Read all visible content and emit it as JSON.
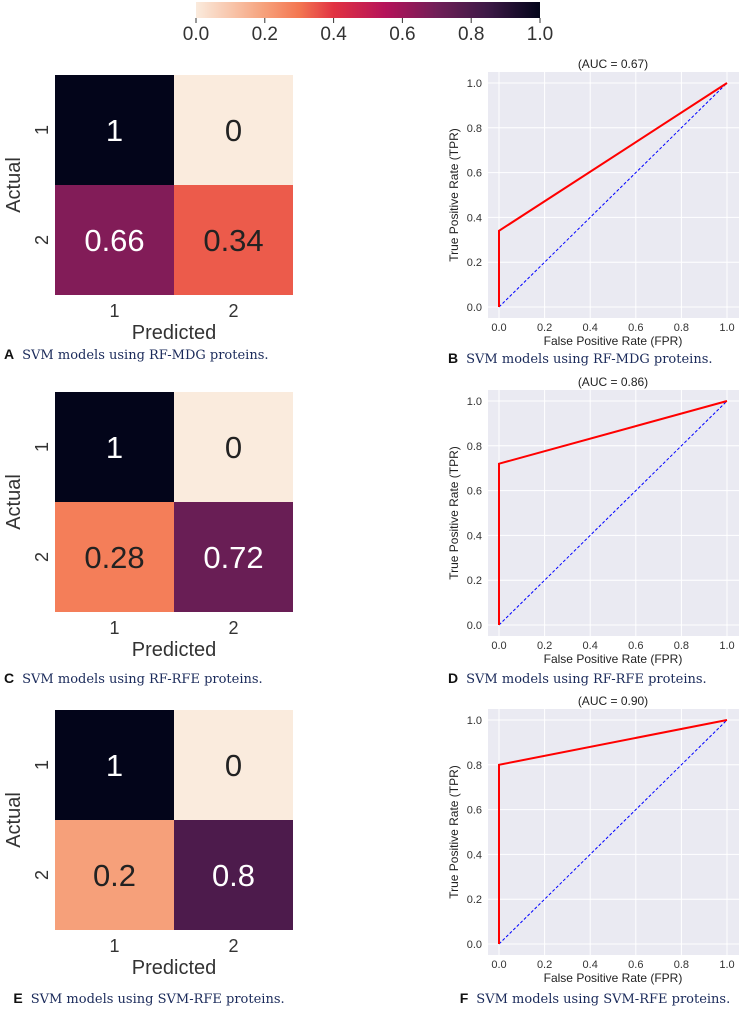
{
  "chart_data": [
    {
      "type": "heatmap",
      "panel": "A",
      "row_labels": [
        "1",
        "2"
      ],
      "col_labels": [
        "1",
        "2"
      ],
      "xlabel": "Predicted",
      "ylabel": "Actual",
      "values": [
        [
          1,
          0
        ],
        [
          0.66,
          0.34
        ]
      ],
      "value_labels": [
        [
          "1",
          "0"
        ],
        [
          "0.66",
          "0.34"
        ]
      ],
      "caption": "SVM models using RF-MDG proteins."
    },
    {
      "type": "line",
      "panel": "B",
      "title": "(AUC = 0.67)",
      "xlabel": "False Positive Rate (FPR)",
      "ylabel": "True Positive Rate (TPR)",
      "xlim": [
        0,
        1
      ],
      "ylim": [
        0,
        1
      ],
      "xticks": [
        "0.0",
        "0.2",
        "0.4",
        "0.6",
        "0.8",
        "1.0"
      ],
      "yticks": [
        "0.0",
        "0.2",
        "0.4",
        "0.6",
        "0.8",
        "1.0"
      ],
      "series": [
        {
          "name": "ROC",
          "color": "#ff0000",
          "x": [
            0,
            0,
            1
          ],
          "y": [
            0,
            0.34,
            1
          ]
        },
        {
          "name": "chance",
          "color": "#0000ff",
          "dashed": true,
          "x": [
            0,
            1
          ],
          "y": [
            0,
            1
          ]
        }
      ],
      "caption": "SVM models using RF-MDG proteins."
    },
    {
      "type": "heatmap",
      "panel": "C",
      "row_labels": [
        "1",
        "2"
      ],
      "col_labels": [
        "1",
        "2"
      ],
      "xlabel": "Predicted",
      "ylabel": "Actual",
      "values": [
        [
          1,
          0
        ],
        [
          0.28,
          0.72
        ]
      ],
      "value_labels": [
        [
          "1",
          "0"
        ],
        [
          "0.28",
          "0.72"
        ]
      ],
      "caption": "SVM models using RF-RFE proteins."
    },
    {
      "type": "line",
      "panel": "D",
      "title": "(AUC = 0.86)",
      "xlabel": "False Positive Rate (FPR)",
      "ylabel": "True Positive Rate (TPR)",
      "xlim": [
        0,
        1
      ],
      "ylim": [
        0,
        1
      ],
      "xticks": [
        "0.0",
        "0.2",
        "0.4",
        "0.6",
        "0.8",
        "1.0"
      ],
      "yticks": [
        "0.0",
        "0.2",
        "0.4",
        "0.6",
        "0.8",
        "1.0"
      ],
      "series": [
        {
          "name": "ROC",
          "color": "#ff0000",
          "x": [
            0,
            0,
            1
          ],
          "y": [
            0,
            0.72,
            1
          ]
        },
        {
          "name": "chance",
          "color": "#0000ff",
          "dashed": true,
          "x": [
            0,
            1
          ],
          "y": [
            0,
            1
          ]
        }
      ],
      "caption": "SVM models using RF-RFE proteins."
    },
    {
      "type": "heatmap",
      "panel": "E",
      "row_labels": [
        "1",
        "2"
      ],
      "col_labels": [
        "1",
        "2"
      ],
      "xlabel": "Predicted",
      "ylabel": "Actual",
      "values": [
        [
          1,
          0
        ],
        [
          0.2,
          0.8
        ]
      ],
      "value_labels": [
        [
          "1",
          "0"
        ],
        [
          "0.2",
          "0.8"
        ]
      ],
      "caption": "SVM models using SVM-RFE proteins."
    },
    {
      "type": "line",
      "panel": "F",
      "title": "(AUC = 0.90)",
      "xlabel": "False Positive Rate (FPR)",
      "ylabel": "True Positive Rate (TPR)",
      "xlim": [
        0,
        1
      ],
      "ylim": [
        0,
        1
      ],
      "xticks": [
        "0.0",
        "0.2",
        "0.4",
        "0.6",
        "0.8",
        "1.0"
      ],
      "yticks": [
        "0.0",
        "0.2",
        "0.4",
        "0.6",
        "0.8",
        "1.0"
      ],
      "series": [
        {
          "name": "ROC",
          "color": "#ff0000",
          "x": [
            0,
            0,
            1
          ],
          "y": [
            0,
            0.8,
            1
          ]
        },
        {
          "name": "chance",
          "color": "#0000ff",
          "dashed": true,
          "x": [
            0,
            1
          ],
          "y": [
            0,
            1
          ]
        }
      ],
      "caption": "SVM models using SVM-RFE proteins."
    }
  ],
  "colorbar": {
    "ticks": [
      "0.0",
      "0.2",
      "0.4",
      "0.6",
      "0.8",
      "1.0"
    ],
    "range": [
      0,
      1
    ],
    "colormap": "rocket_r"
  }
}
